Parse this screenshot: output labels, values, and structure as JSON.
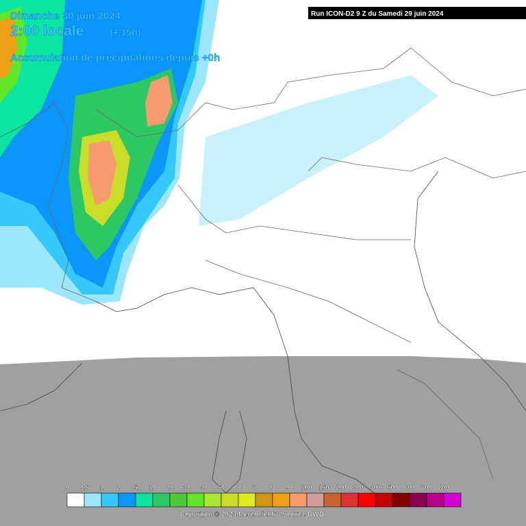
{
  "header": {
    "date": "Dimanche 30 juin 2024",
    "time": "2:00 locale",
    "offset": "(+ 15h)",
    "subtitle": "Accumulation de précipitations depuis +0h",
    "run": "Run ICON-D2 9 Z du Samedi 29 juin 2024"
  },
  "legend": {
    "labels": [
      0,
      0.5,
      1,
      2,
      5,
      10,
      20,
      30,
      40,
      50,
      60,
      70,
      80,
      90,
      100,
      150,
      200,
      300,
      400,
      500,
      600,
      700,
      800
    ],
    "colors": [
      "#ffffff",
      "#9be6fa",
      "#37c8fa",
      "#0a96fa",
      "#0ae6a0",
      "#2dc864",
      "#50c83c",
      "#64e628",
      "#aae632",
      "#c8dc28",
      "#dcec1e",
      "#d29614",
      "#f0a014",
      "#f59b6e",
      "#d29b9b",
      "#c86432",
      "#dc3232",
      "#ff0000",
      "#c80000",
      "#820000",
      "#8c0050",
      "#b4008c",
      "#d200d2"
    ]
  },
  "footer": {
    "copyright": "Copyright © 2024 Meteociel.fr - Source DWD"
  }
}
